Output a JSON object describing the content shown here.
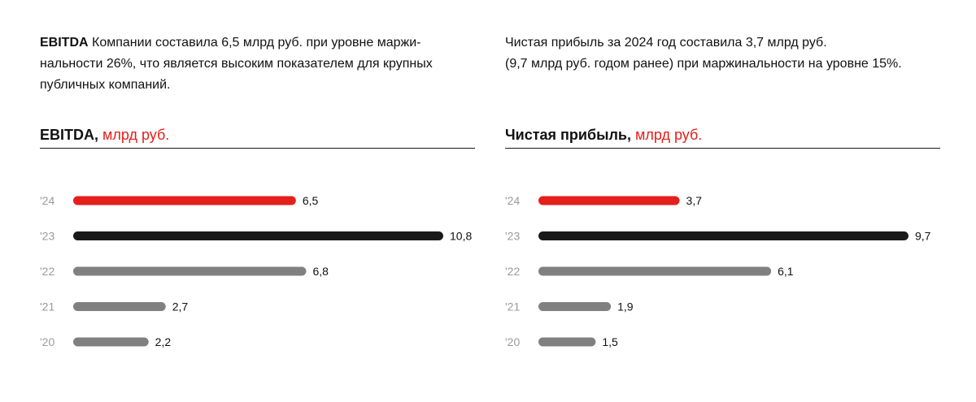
{
  "left": {
    "intro_bold": "EBITDA",
    "intro_rest": " Компании составила 6,5 млрд руб. при уровне маржи-нальности 26%, что является высоким показателем для крупных публичных компаний.",
    "title_main": "EBITDA,",
    "title_unit": " млрд руб."
  },
  "right": {
    "intro_line1": "Чистая прибыль за 2024 год составила 3,7 млрд руб.",
    "intro_line2": "(9,7 млрд руб. годом ранее) при маржинальности на уровне 15%.",
    "title_main": "Чистая прибыль,",
    "title_unit": " млрд руб."
  },
  "colors": {
    "highlight": "#e3201b",
    "dark": "#1a1a1a",
    "gray": "#808080"
  },
  "chart_data": [
    {
      "type": "bar",
      "orientation": "horizontal",
      "title": "EBITDA, млрд руб.",
      "categories": [
        "'24",
        "'23",
        "'22",
        "'21",
        "'20"
      ],
      "values": [
        6.5,
        10.8,
        6.8,
        2.7,
        2.2
      ],
      "value_labels": [
        "6,5",
        "10,8",
        "6,8",
        "2,7",
        "2,2"
      ],
      "bar_colors": [
        "highlight",
        "dark",
        "gray",
        "gray",
        "gray"
      ],
      "xlim": [
        0,
        10.8
      ],
      "grid": false,
      "legend": "none"
    },
    {
      "type": "bar",
      "orientation": "horizontal",
      "title": "Чистая прибыль, млрд руб.",
      "categories": [
        "'24",
        "'23",
        "'22",
        "'21",
        "'20"
      ],
      "values": [
        3.7,
        9.7,
        6.1,
        1.9,
        1.5
      ],
      "value_labels": [
        "3,7",
        "9,7",
        "6,1",
        "1,9",
        "1,5"
      ],
      "bar_colors": [
        "highlight",
        "dark",
        "gray",
        "gray",
        "gray"
      ],
      "xlim": [
        0,
        9.7
      ],
      "grid": false,
      "legend": "none"
    }
  ]
}
